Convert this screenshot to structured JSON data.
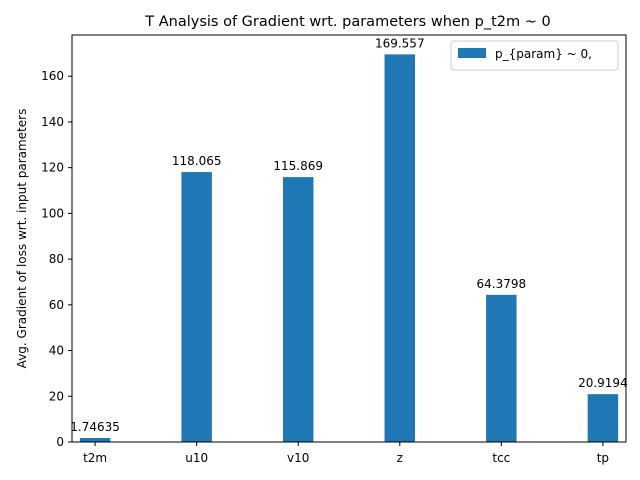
{
  "chart_data": {
    "type": "bar",
    "title": "T Analysis of Gradient wrt. parameters when p_t2m ~ 0",
    "xlabel": "",
    "ylabel": "Avg. Gradient of loss wrt. input parameters",
    "categories": [
      "t2m",
      "u10",
      "v10",
      "z",
      "tcc",
      "tp"
    ],
    "series": [
      {
        "name": "p_{param} ~ 0,",
        "values": [
          1.74635,
          118.065,
          115.869,
          169.557,
          64.3798,
          20.9194
        ],
        "labels": [
          "1.74635",
          "118.065",
          "115.869",
          "169.557",
          "64.3798",
          "20.9194"
        ],
        "color": "#1f77b4"
      }
    ],
    "ylim": [
      0,
      178.03
    ],
    "yticks": [
      0,
      20,
      40,
      60,
      80,
      100,
      120,
      140,
      160
    ],
    "ytick_labels": [
      "0",
      "20",
      "40",
      "60",
      "80",
      "100",
      "120",
      "140",
      "160"
    ],
    "grid": false,
    "legend_position": "top-right"
  }
}
